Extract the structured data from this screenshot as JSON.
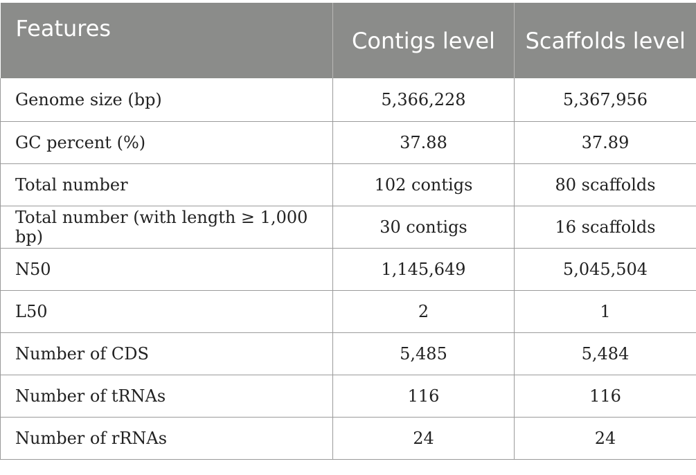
{
  "table": {
    "headers": [
      "Features",
      "Contigs level",
      "Scaffolds level"
    ],
    "rows": [
      [
        "Genome size (bp)",
        "5,366,228",
        "5,367,956"
      ],
      [
        "GC percent (%)",
        "37.88",
        "37.89"
      ],
      [
        "Total number",
        "102 contigs",
        "80 scaffolds"
      ],
      [
        "Total number (with length ≥ 1,000 bp)",
        "30 contigs",
        "16 scaffolds"
      ],
      [
        "N50",
        "1,145,649",
        "5,045,504"
      ],
      [
        "L50",
        "2",
        "1"
      ],
      [
        "Number of CDS",
        "5,485",
        "5,484"
      ],
      [
        "Number of tRNAs",
        "116",
        "116"
      ],
      [
        "Number of rRNAs",
        "24",
        "24"
      ]
    ]
  },
  "colors": {
    "header_background": "#8b8c8a",
    "header_text": "#ffffff",
    "grid_line": "#9a9a9a"
  }
}
